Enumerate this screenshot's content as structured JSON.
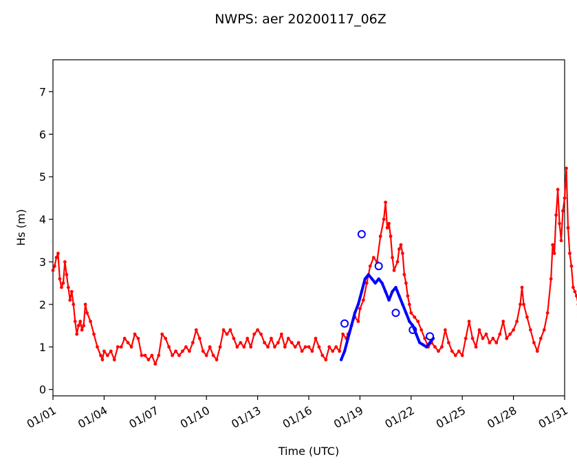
{
  "chart_data": {
    "type": "line",
    "title": "NWPS: aer 20200117_06Z",
    "xlabel": "Time (UTC)",
    "ylabel": "Hs (m)",
    "xlim": [
      0,
      30
    ],
    "ylim": [
      -0.15,
      7.75
    ],
    "x_unit": "days from 01/01",
    "x_ticks": [
      {
        "value": 0,
        "label": "01/01"
      },
      {
        "value": 3,
        "label": "01/04"
      },
      {
        "value": 6,
        "label": "01/07"
      },
      {
        "value": 9,
        "label": "01/10"
      },
      {
        "value": 12,
        "label": "01/13"
      },
      {
        "value": 15,
        "label": "01/16"
      },
      {
        "value": 18,
        "label": "01/19"
      },
      {
        "value": 21,
        "label": "01/22"
      },
      {
        "value": 24,
        "label": "01/25"
      },
      {
        "value": 27,
        "label": "01/28"
      },
      {
        "value": 30,
        "label": "01/31"
      }
    ],
    "y_ticks": [
      0,
      1,
      2,
      3,
      4,
      5,
      6,
      7
    ],
    "series": [
      {
        "color": "#ff0000",
        "style": "line-with-dots",
        "points": [
          [
            0.0,
            2.8
          ],
          [
            0.1,
            2.9
          ],
          [
            0.2,
            3.1
          ],
          [
            0.3,
            3.2
          ],
          [
            0.4,
            2.6
          ],
          [
            0.5,
            2.4
          ],
          [
            0.6,
            2.5
          ],
          [
            0.7,
            3.0
          ],
          [
            0.8,
            2.7
          ],
          [
            0.9,
            2.4
          ],
          [
            1.0,
            2.1
          ],
          [
            1.1,
            2.3
          ],
          [
            1.2,
            2.0
          ],
          [
            1.3,
            1.6
          ],
          [
            1.4,
            1.3
          ],
          [
            1.5,
            1.5
          ],
          [
            1.6,
            1.6
          ],
          [
            1.7,
            1.4
          ],
          [
            1.8,
            1.5
          ],
          [
            1.9,
            2.0
          ],
          [
            2.0,
            1.8
          ],
          [
            2.2,
            1.6
          ],
          [
            2.4,
            1.3
          ],
          [
            2.6,
            1.0
          ],
          [
            2.8,
            0.8
          ],
          [
            2.9,
            0.7
          ],
          [
            3.0,
            0.9
          ],
          [
            3.2,
            0.8
          ],
          [
            3.4,
            0.9
          ],
          [
            3.6,
            0.7
          ],
          [
            3.8,
            1.0
          ],
          [
            4.0,
            1.0
          ],
          [
            4.2,
            1.2
          ],
          [
            4.4,
            1.1
          ],
          [
            4.6,
            1.0
          ],
          [
            4.8,
            1.3
          ],
          [
            5.0,
            1.2
          ],
          [
            5.2,
            0.8
          ],
          [
            5.4,
            0.8
          ],
          [
            5.6,
            0.7
          ],
          [
            5.8,
            0.8
          ],
          [
            6.0,
            0.6
          ],
          [
            6.2,
            0.8
          ],
          [
            6.4,
            1.3
          ],
          [
            6.6,
            1.2
          ],
          [
            6.8,
            1.0
          ],
          [
            7.0,
            0.8
          ],
          [
            7.2,
            0.9
          ],
          [
            7.4,
            0.8
          ],
          [
            7.6,
            0.9
          ],
          [
            7.8,
            1.0
          ],
          [
            8.0,
            0.9
          ],
          [
            8.2,
            1.1
          ],
          [
            8.4,
            1.4
          ],
          [
            8.6,
            1.2
          ],
          [
            8.8,
            0.9
          ],
          [
            9.0,
            0.8
          ],
          [
            9.2,
            1.0
          ],
          [
            9.4,
            0.8
          ],
          [
            9.6,
            0.7
          ],
          [
            9.8,
            1.0
          ],
          [
            10.0,
            1.4
          ],
          [
            10.2,
            1.3
          ],
          [
            10.4,
            1.4
          ],
          [
            10.6,
            1.2
          ],
          [
            10.8,
            1.0
          ],
          [
            11.0,
            1.1
          ],
          [
            11.2,
            1.0
          ],
          [
            11.4,
            1.2
          ],
          [
            11.6,
            1.0
          ],
          [
            11.8,
            1.3
          ],
          [
            12.0,
            1.4
          ],
          [
            12.2,
            1.3
          ],
          [
            12.4,
            1.1
          ],
          [
            12.6,
            1.0
          ],
          [
            12.8,
            1.2
          ],
          [
            13.0,
            1.0
          ],
          [
            13.2,
            1.1
          ],
          [
            13.4,
            1.3
          ],
          [
            13.6,
            1.0
          ],
          [
            13.8,
            1.2
          ],
          [
            14.0,
            1.1
          ],
          [
            14.2,
            1.0
          ],
          [
            14.4,
            1.1
          ],
          [
            14.6,
            0.9
          ],
          [
            14.8,
            1.0
          ],
          [
            15.0,
            1.0
          ],
          [
            15.2,
            0.9
          ],
          [
            15.4,
            1.2
          ],
          [
            15.6,
            1.0
          ],
          [
            15.8,
            0.8
          ],
          [
            16.0,
            0.7
          ],
          [
            16.2,
            1.0
          ],
          [
            16.4,
            0.9
          ],
          [
            16.6,
            1.0
          ],
          [
            16.8,
            0.9
          ],
          [
            17.0,
            1.3
          ],
          [
            17.2,
            1.2
          ],
          [
            17.3,
            1.3
          ],
          [
            17.5,
            1.5
          ],
          [
            17.7,
            1.7
          ],
          [
            17.9,
            1.6
          ],
          [
            18.0,
            1.9
          ],
          [
            18.2,
            2.1
          ],
          [
            18.4,
            2.5
          ],
          [
            18.6,
            2.9
          ],
          [
            18.8,
            3.1
          ],
          [
            19.0,
            3.0
          ],
          [
            19.2,
            3.6
          ],
          [
            19.4,
            4.0
          ],
          [
            19.5,
            4.4
          ],
          [
            19.6,
            3.8
          ],
          [
            19.7,
            3.9
          ],
          [
            19.8,
            3.6
          ],
          [
            19.9,
            3.1
          ],
          [
            20.0,
            2.8
          ],
          [
            20.2,
            3.0
          ],
          [
            20.3,
            3.3
          ],
          [
            20.4,
            3.4
          ],
          [
            20.5,
            3.2
          ],
          [
            20.6,
            2.7
          ],
          [
            20.7,
            2.5
          ],
          [
            20.8,
            2.2
          ],
          [
            20.9,
            2.0
          ],
          [
            21.0,
            1.8
          ],
          [
            21.2,
            1.7
          ],
          [
            21.4,
            1.6
          ],
          [
            21.6,
            1.4
          ],
          [
            21.8,
            1.2
          ],
          [
            22.0,
            1.0
          ],
          [
            22.2,
            1.1
          ],
          [
            22.4,
            1.0
          ],
          [
            22.6,
            0.9
          ],
          [
            22.8,
            1.0
          ],
          [
            23.0,
            1.4
          ],
          [
            23.2,
            1.1
          ],
          [
            23.4,
            0.9
          ],
          [
            23.6,
            0.8
          ],
          [
            23.8,
            0.9
          ],
          [
            24.0,
            0.8
          ],
          [
            24.2,
            1.2
          ],
          [
            24.4,
            1.6
          ],
          [
            24.6,
            1.2
          ],
          [
            24.8,
            1.0
          ],
          [
            25.0,
            1.4
          ],
          [
            25.2,
            1.2
          ],
          [
            25.4,
            1.3
          ],
          [
            25.6,
            1.1
          ],
          [
            25.8,
            1.2
          ],
          [
            26.0,
            1.1
          ],
          [
            26.2,
            1.3
          ],
          [
            26.4,
            1.6
          ],
          [
            26.6,
            1.2
          ],
          [
            26.8,
            1.3
          ],
          [
            27.0,
            1.4
          ],
          [
            27.2,
            1.6
          ],
          [
            27.4,
            2.0
          ],
          [
            27.5,
            2.4
          ],
          [
            27.6,
            2.0
          ],
          [
            27.8,
            1.7
          ],
          [
            28.0,
            1.4
          ],
          [
            28.2,
            1.1
          ],
          [
            28.4,
            0.9
          ],
          [
            28.6,
            1.2
          ],
          [
            28.8,
            1.4
          ],
          [
            29.0,
            1.8
          ],
          [
            29.2,
            2.6
          ],
          [
            29.3,
            3.4
          ],
          [
            29.4,
            3.2
          ],
          [
            29.5,
            4.1
          ],
          [
            29.6,
            4.7
          ],
          [
            29.7,
            3.9
          ],
          [
            29.8,
            3.5
          ],
          [
            29.9,
            4.2
          ],
          [
            30.0,
            4.5
          ],
          [
            30.1,
            5.2
          ],
          [
            30.2,
            3.8
          ],
          [
            30.3,
            3.2
          ],
          [
            30.4,
            2.9
          ],
          [
            30.5,
            2.4
          ],
          [
            30.6,
            2.3
          ],
          [
            30.7,
            2.2
          ],
          [
            30.8,
            2.0
          ]
        ]
      },
      {
        "color": "#0000ff",
        "style": "thick-line",
        "points": [
          [
            16.9,
            0.7
          ],
          [
            17.1,
            0.9
          ],
          [
            17.3,
            1.2
          ],
          [
            17.5,
            1.5
          ],
          [
            17.7,
            1.8
          ],
          [
            17.9,
            2.0
          ],
          [
            18.1,
            2.3
          ],
          [
            18.3,
            2.6
          ],
          [
            18.5,
            2.7
          ],
          [
            18.7,
            2.6
          ],
          [
            18.9,
            2.5
          ],
          [
            19.1,
            2.6
          ],
          [
            19.3,
            2.5
          ],
          [
            19.5,
            2.3
          ],
          [
            19.7,
            2.1
          ],
          [
            19.9,
            2.3
          ],
          [
            20.1,
            2.4
          ],
          [
            20.3,
            2.2
          ],
          [
            20.5,
            2.0
          ],
          [
            20.7,
            1.8
          ],
          [
            20.9,
            1.6
          ],
          [
            21.1,
            1.5
          ],
          [
            21.3,
            1.3
          ],
          [
            21.5,
            1.1
          ],
          [
            21.7,
            1.05
          ],
          [
            21.9,
            1.0
          ],
          [
            22.1,
            1.1
          ],
          [
            22.3,
            1.2
          ]
        ]
      },
      {
        "color": "#0000ff",
        "style": "open-circles",
        "points": [
          [
            17.1,
            1.55
          ],
          [
            18.1,
            3.65
          ],
          [
            19.1,
            2.9
          ],
          [
            20.1,
            1.8
          ],
          [
            21.1,
            1.4
          ],
          [
            22.1,
            1.25
          ]
        ]
      }
    ]
  }
}
